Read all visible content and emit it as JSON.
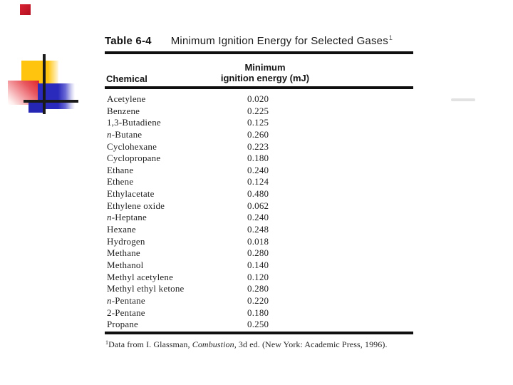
{
  "table": {
    "label": "Table 6-4",
    "title": "Minimum Ignition Energy for Selected Gases",
    "title_superscript": "1",
    "columns": {
      "chemical": "Chemical",
      "energy_line1": "Minimum",
      "energy_line2": "ignition energy (mJ)"
    },
    "rows": [
      {
        "prefix": "",
        "chemical": "Acetylene",
        "value": "0.020"
      },
      {
        "prefix": "",
        "chemical": "Benzene",
        "value": "0.225"
      },
      {
        "prefix": "",
        "chemical": "1,3-Butadiene",
        "value": "0.125"
      },
      {
        "prefix": "n-",
        "chemical": "Butane",
        "value": "0.260"
      },
      {
        "prefix": "",
        "chemical": "Cyclohexane",
        "value": "0.223"
      },
      {
        "prefix": "",
        "chemical": "Cyclopropane",
        "value": "0.180"
      },
      {
        "prefix": "",
        "chemical": "Ethane",
        "value": "0.240"
      },
      {
        "prefix": "",
        "chemical": "Ethene",
        "value": "0.124"
      },
      {
        "prefix": "",
        "chemical": "Ethylacetate",
        "value": "0.480"
      },
      {
        "prefix": "",
        "chemical": "Ethylene oxide",
        "value": "0.062"
      },
      {
        "prefix": "n-",
        "chemical": "Heptane",
        "value": "0.240"
      },
      {
        "prefix": "",
        "chemical": "Hexane",
        "value": "0.248"
      },
      {
        "prefix": "",
        "chemical": "Hydrogen",
        "value": "0.018"
      },
      {
        "prefix": "",
        "chemical": "Methane",
        "value": "0.280"
      },
      {
        "prefix": "",
        "chemical": "Methanol",
        "value": "0.140"
      },
      {
        "prefix": "",
        "chemical": "Methyl acetylene",
        "value": "0.120"
      },
      {
        "prefix": "",
        "chemical": "Methyl ethyl ketone",
        "value": "0.280"
      },
      {
        "prefix": "n-",
        "chemical": "Pentane",
        "value": "0.220"
      },
      {
        "prefix": "",
        "chemical": "2-Pentane",
        "value": "0.180"
      },
      {
        "prefix": "",
        "chemical": "Propane",
        "value": "0.250"
      }
    ]
  },
  "footnote": {
    "superscript": "1",
    "text_before": "Data from I. Glassman, ",
    "italic_title": "Combustion,",
    "text_after": " 3d ed. (New York: Academic Press, 1996)."
  },
  "decoration": {
    "colors": {
      "yellow_square": "#ffc40d",
      "red_square": "#e02529",
      "blue_square": "#2a2abc",
      "small_blue_square": "#2626b4",
      "corner_red_square": "#c2132a",
      "cross_lines": "#1a1a1a"
    }
  }
}
